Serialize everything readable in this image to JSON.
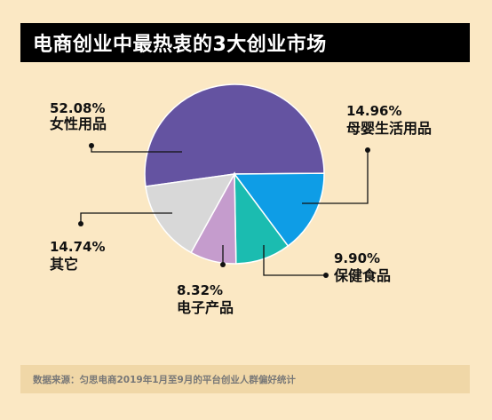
{
  "title": "电商创业中最热衷的3大创业市场",
  "source": "数据来源：匀思电商2019年1月至9月的平台创业人群偏好统计",
  "colors": {
    "background": "#fbe8c4",
    "title_bar": "#000000",
    "source_bar": "#f0d7a7"
  },
  "chart_data": {
    "type": "pie",
    "title": "电商创业中最热衷的3大创业市场",
    "slices": [
      {
        "label": "女性用品",
        "pct_label": "52.08%",
        "value": 52.08,
        "color": "#6453a1"
      },
      {
        "label": "母婴生活用品",
        "pct_label": "14.96%",
        "value": 14.96,
        "color": "#0e9de6"
      },
      {
        "label": "保健食品",
        "pct_label": "9.90%",
        "value": 9.9,
        "color": "#1bbcb0"
      },
      {
        "label": "电子产品",
        "pct_label": "8.32%",
        "value": 8.32,
        "color": "#c59ccd"
      },
      {
        "label": "其它",
        "pct_label": "14.74%",
        "value": 14.74,
        "color": "#d8d8d8"
      }
    ]
  }
}
